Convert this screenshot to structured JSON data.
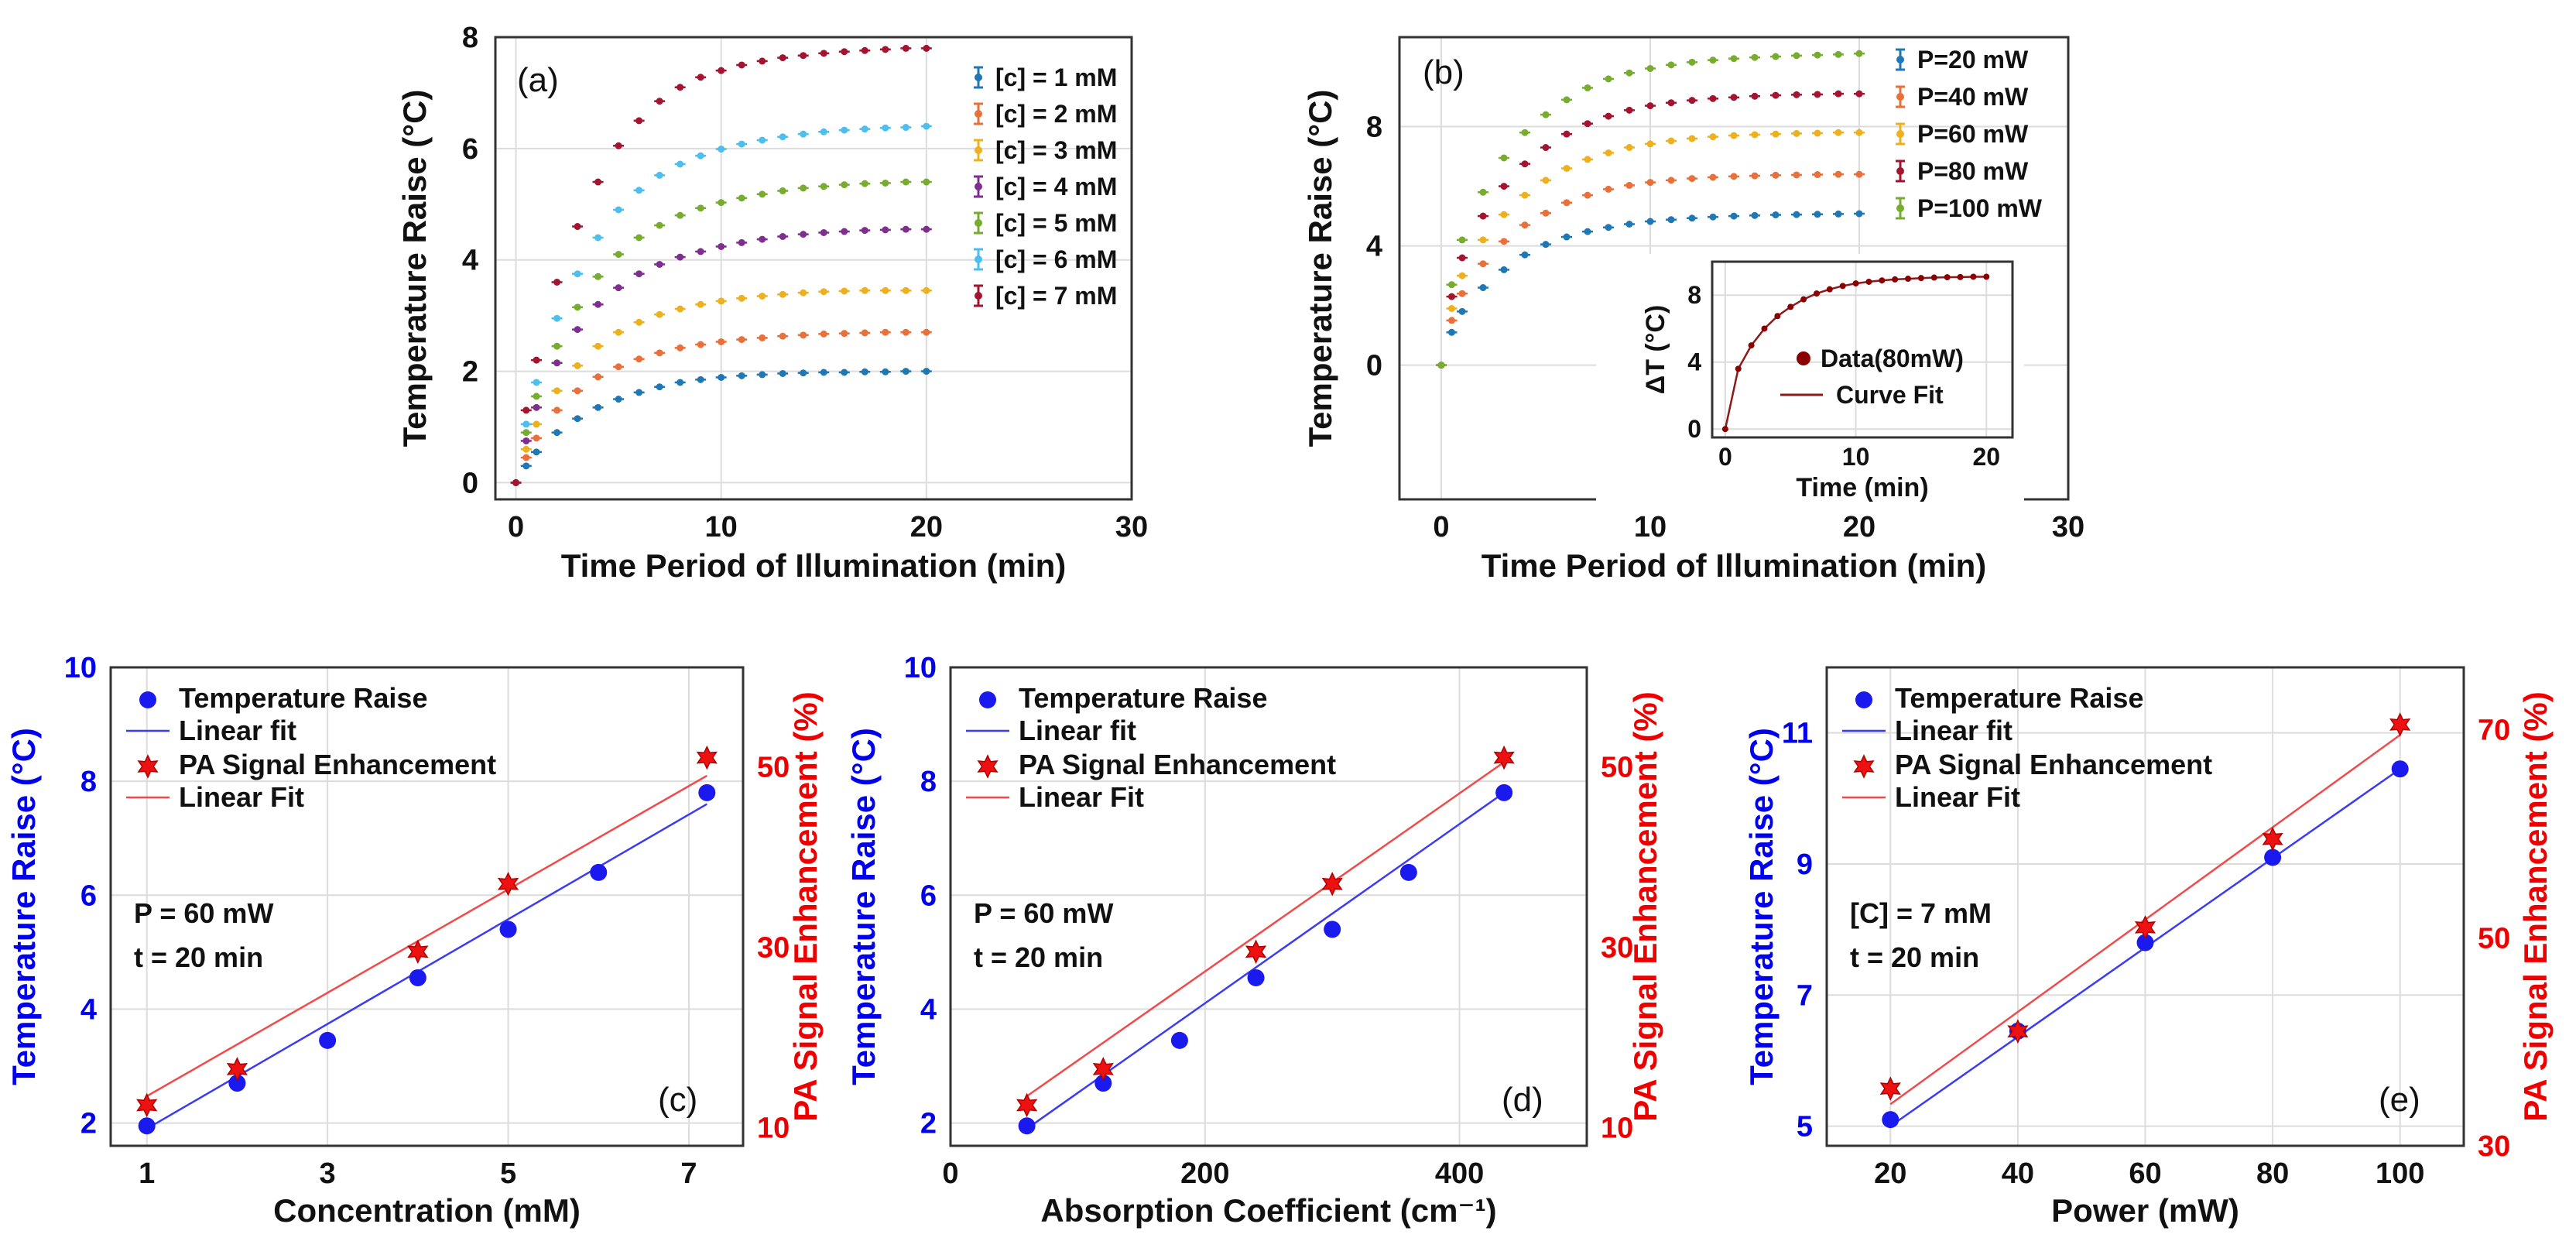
{
  "chart_data": [
    {
      "panel": "a",
      "type": "scatter",
      "panel_label": "(a)",
      "xlabel": "Time Period of Illumination (min)",
      "ylabel": "Temperature Raise (°C)",
      "xlim": [
        -1,
        30
      ],
      "ylim": [
        -0.3,
        8
      ],
      "xticks": [
        0,
        10,
        20,
        30
      ],
      "yticks": [
        0,
        2,
        4,
        6,
        8
      ],
      "x": [
        0,
        0.5,
        1,
        2,
        3,
        4,
        5,
        6,
        7,
        8,
        9,
        10,
        11,
        12,
        13,
        14,
        15,
        16,
        17,
        18,
        19,
        20
      ],
      "series": [
        {
          "name": "[c] = 1 mM",
          "color": "#1f77b4",
          "values": [
            0,
            0.3,
            0.55,
            0.9,
            1.15,
            1.35,
            1.5,
            1.62,
            1.72,
            1.8,
            1.85,
            1.89,
            1.92,
            1.94,
            1.96,
            1.97,
            1.98,
            1.98,
            1.99,
            1.99,
            2.0,
            2.0
          ]
        },
        {
          "name": "[c] = 2 mM",
          "color": "#e8703a",
          "values": [
            0,
            0.45,
            0.8,
            1.3,
            1.65,
            1.9,
            2.08,
            2.22,
            2.33,
            2.42,
            2.48,
            2.53,
            2.57,
            2.6,
            2.63,
            2.65,
            2.67,
            2.68,
            2.69,
            2.7,
            2.7,
            2.7
          ]
        },
        {
          "name": "[c] = 3 mM",
          "color": "#edb120",
          "values": [
            0,
            0.6,
            1.05,
            1.65,
            2.1,
            2.45,
            2.7,
            2.88,
            3.02,
            3.12,
            3.2,
            3.26,
            3.31,
            3.35,
            3.38,
            3.41,
            3.43,
            3.44,
            3.45,
            3.45,
            3.45,
            3.45
          ]
        },
        {
          "name": "[c] = 4 mM",
          "color": "#7e2f8e",
          "values": [
            0,
            0.75,
            1.35,
            2.15,
            2.75,
            3.2,
            3.5,
            3.75,
            3.92,
            4.05,
            4.15,
            4.24,
            4.31,
            4.37,
            4.42,
            4.46,
            4.49,
            4.51,
            4.53,
            4.54,
            4.55,
            4.55
          ]
        },
        {
          "name": "[c] = 5 mM",
          "color": "#77ac30",
          "values": [
            0,
            0.9,
            1.55,
            2.45,
            3.15,
            3.7,
            4.1,
            4.4,
            4.62,
            4.8,
            4.93,
            5.03,
            5.11,
            5.18,
            5.24,
            5.29,
            5.32,
            5.35,
            5.37,
            5.38,
            5.4,
            5.4
          ]
        },
        {
          "name": "[c] = 6 mM",
          "color": "#4dbeee",
          "values": [
            0,
            1.05,
            1.8,
            2.95,
            3.75,
            4.4,
            4.9,
            5.25,
            5.52,
            5.72,
            5.87,
            5.99,
            6.08,
            6.15,
            6.21,
            6.26,
            6.3,
            6.33,
            6.35,
            6.37,
            6.38,
            6.4
          ]
        },
        {
          "name": "[c] = 7 mM",
          "color": "#a2142f",
          "values": [
            0,
            1.3,
            2.2,
            3.6,
            4.6,
            5.4,
            6.05,
            6.5,
            6.85,
            7.1,
            7.28,
            7.4,
            7.5,
            7.57,
            7.63,
            7.67,
            7.71,
            7.74,
            7.76,
            7.78,
            7.8,
            7.8
          ]
        }
      ]
    },
    {
      "panel": "b",
      "type": "scatter",
      "panel_label": "(b)",
      "xlabel": "Time Period of Illumination (min)",
      "ylabel": "Temperature Raise (°C)",
      "xlim": [
        -2,
        30
      ],
      "ylim": [
        -4.5,
        11
      ],
      "xticks": [
        0,
        10,
        20,
        30
      ],
      "yticks": [
        0,
        4,
        8
      ],
      "x": [
        0,
        0.5,
        1,
        2,
        3,
        4,
        5,
        6,
        7,
        8,
        9,
        10,
        11,
        12,
        13,
        14,
        15,
        16,
        17,
        18,
        19,
        20
      ],
      "series": [
        {
          "name": "P=20 mW",
          "color": "#1f77b4",
          "values": [
            0,
            1.1,
            1.8,
            2.6,
            3.2,
            3.7,
            4.05,
            4.3,
            4.48,
            4.62,
            4.73,
            4.82,
            4.88,
            4.93,
            4.97,
            5.0,
            5.02,
            5.04,
            5.05,
            5.06,
            5.07,
            5.08
          ]
        },
        {
          "name": "P=40 mW",
          "color": "#e8703a",
          "values": [
            0,
            1.5,
            2.4,
            3.4,
            4.15,
            4.7,
            5.1,
            5.45,
            5.7,
            5.9,
            6.03,
            6.13,
            6.2,
            6.26,
            6.3,
            6.33,
            6.35,
            6.37,
            6.38,
            6.39,
            6.4,
            6.4
          ]
        },
        {
          "name": "P=60 mW",
          "color": "#edb120",
          "values": [
            0,
            1.9,
            3.0,
            4.2,
            5.05,
            5.7,
            6.2,
            6.6,
            6.9,
            7.12,
            7.3,
            7.42,
            7.52,
            7.6,
            7.66,
            7.7,
            7.73,
            7.75,
            7.77,
            7.78,
            7.8,
            7.8
          ]
        },
        {
          "name": "P=80 mW",
          "color": "#a2142f",
          "values": [
            0,
            2.3,
            3.6,
            5.0,
            6.0,
            6.75,
            7.3,
            7.75,
            8.1,
            8.35,
            8.55,
            8.7,
            8.8,
            8.88,
            8.94,
            8.98,
            9.02,
            9.05,
            9.07,
            9.08,
            9.1,
            9.1
          ]
        },
        {
          "name": "P=100 mW",
          "color": "#77ac30",
          "values": [
            0,
            2.7,
            4.2,
            5.8,
            6.95,
            7.8,
            8.4,
            8.9,
            9.3,
            9.6,
            9.8,
            9.95,
            10.07,
            10.16,
            10.23,
            10.28,
            10.32,
            10.35,
            10.38,
            10.4,
            10.42,
            10.45
          ]
        }
      ],
      "inset": {
        "xlabel": "Time (min)",
        "ylabel": "ΔT (°C)",
        "xlim": [
          -1,
          22
        ],
        "ylim": [
          -0.5,
          10
        ],
        "xticks": [
          0,
          10,
          20
        ],
        "yticks": [
          0,
          4,
          8
        ],
        "legend": [
          "Data(80mW)",
          "Curve Fit"
        ],
        "marker_color": "#8b0000",
        "fit_color": "#8b1a1a",
        "x": [
          0,
          1,
          2,
          3,
          4,
          5,
          6,
          7,
          8,
          9,
          10,
          11,
          12,
          13,
          14,
          15,
          16,
          17,
          18,
          19,
          20
        ],
        "values": [
          0,
          3.6,
          5.0,
          6.0,
          6.75,
          7.3,
          7.75,
          8.1,
          8.35,
          8.55,
          8.7,
          8.8,
          8.88,
          8.94,
          8.98,
          9.02,
          9.05,
          9.07,
          9.08,
          9.1,
          9.1
        ]
      }
    },
    {
      "panel": "c",
      "type": "scatter",
      "panel_label": "(c)",
      "xlabel": "Concentration (mM)",
      "ylabel_left": "Temperature Raise (°C)",
      "ylabel_right": "PA Signal Enhancement (%)",
      "xlim": [
        0.6,
        7.6
      ],
      "ylim_left": [
        1.6,
        10
      ],
      "ylim_right": [
        8,
        61
      ],
      "xticks": [
        1,
        3,
        5,
        7
      ],
      "yticks_left": [
        2,
        4,
        6,
        8,
        10
      ],
      "yticks_right": [
        10,
        30,
        50
      ],
      "annotation": [
        "P = 60 mW",
        "t = 20 min"
      ],
      "legend": [
        "Temperature Raise",
        "Linear fit",
        "PA Signal Enhancement",
        "Linear Fit"
      ],
      "temperature": {
        "x": [
          1,
          2,
          3,
          4,
          5,
          6,
          7.2
        ],
        "values": [
          1.95,
          2.7,
          3.45,
          4.55,
          5.4,
          6.4,
          7.8
        ],
        "fit": [
          [
            1,
            1.9
          ],
          [
            7.2,
            7.6
          ]
        ]
      },
      "pa_signal": {
        "x": [
          1,
          2,
          4,
          5,
          7.2
        ],
        "values": [
          12.5,
          16.5,
          29.5,
          37,
          51
        ],
        "fit": [
          [
            1,
            13.5
          ],
          [
            7.2,
            49
          ]
        ]
      }
    },
    {
      "panel": "d",
      "type": "scatter",
      "panel_label": "(d)",
      "xlabel": "Absorption Coefficient (cm⁻¹)",
      "ylabel_left": "Temperature Raise (°C)",
      "ylabel_right": "PA Signal Enhancement (%)",
      "xlim": [
        0,
        500
      ],
      "ylim_left": [
        1.6,
        10
      ],
      "ylim_right": [
        8,
        61
      ],
      "xticks": [
        0,
        200,
        400
      ],
      "yticks_left": [
        2,
        4,
        6,
        8,
        10
      ],
      "yticks_right": [
        10,
        30,
        50
      ],
      "annotation": [
        "P = 60 mW",
        "t = 20 min"
      ],
      "legend": [
        "Temperature Raise",
        "Linear fit",
        "PA Signal Enhancement",
        "Linear Fit"
      ],
      "temperature": {
        "x": [
          60,
          120,
          180,
          240,
          300,
          360,
          435
        ],
        "values": [
          1.95,
          2.7,
          3.45,
          4.55,
          5.4,
          6.4,
          7.8
        ],
        "fit": [
          [
            60,
            1.9
          ],
          [
            435,
            7.8
          ]
        ]
      },
      "pa_signal": {
        "x": [
          60,
          120,
          240,
          300,
          435
        ],
        "values": [
          12.5,
          16.5,
          29.5,
          37,
          51
        ],
        "fit": [
          [
            60,
            13.5
          ],
          [
            435,
            50.5
          ]
        ]
      }
    },
    {
      "panel": "e",
      "type": "scatter",
      "panel_label": "(e)",
      "xlabel": "Power (mW)",
      "ylabel_left": "Temperature Raise (°C)",
      "ylabel_right": "PA Signal Enhancement (%)",
      "xlim": [
        10,
        110
      ],
      "ylim_left": [
        4.7,
        12
      ],
      "ylim_right": [
        30,
        76
      ],
      "xticks": [
        20,
        40,
        60,
        80,
        100
      ],
      "yticks_left": [
        5,
        7,
        9,
        11
      ],
      "yticks_right": [
        30,
        50,
        70
      ],
      "annotation": [
        "[C] = 7 mM",
        "t = 20 min"
      ],
      "legend": [
        "Temperature Raise",
        "Linear fit",
        "PA Signal Enhancement",
        "Linear Fit"
      ],
      "temperature": {
        "x": [
          20,
          40,
          60,
          80,
          100
        ],
        "values": [
          5.1,
          6.45,
          7.8,
          9.1,
          10.45
        ],
        "fit": [
          [
            20,
            5.0
          ],
          [
            100,
            10.45
          ]
        ]
      },
      "pa_signal": {
        "x": [
          20,
          40,
          60,
          80,
          100
        ],
        "values": [
          35.5,
          41,
          51,
          59.5,
          70.5
        ],
        "fit": [
          [
            20,
            34
          ],
          [
            100,
            69.5
          ]
        ]
      }
    }
  ]
}
